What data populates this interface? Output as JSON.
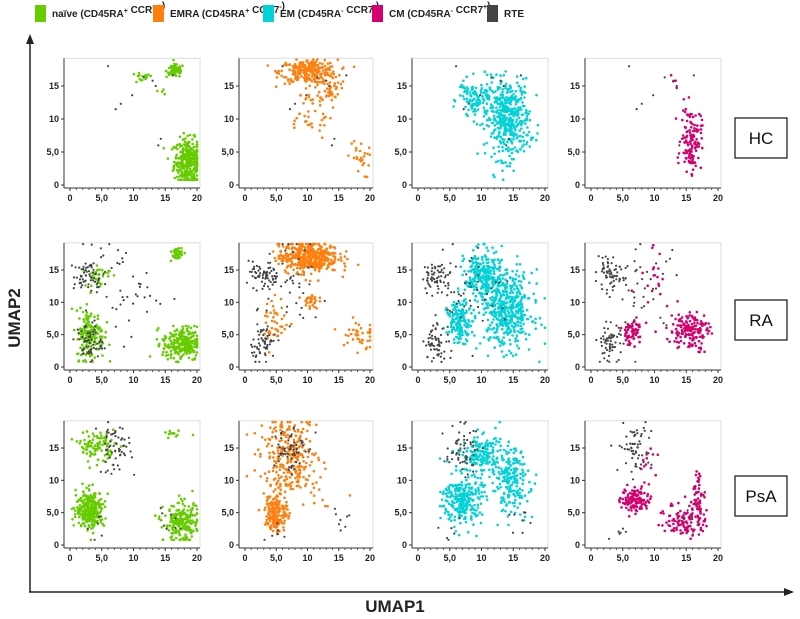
{
  "chart_data": {
    "type": "scatter",
    "title": "",
    "xlabel": "UMAP1",
    "ylabel": "UMAP2",
    "xlim": [
      0,
      20
    ],
    "ylim": [
      0,
      19
    ],
    "xticks": [
      "0",
      "5,0",
      "10",
      "15",
      "20"
    ],
    "xtick_values": [
      0,
      5,
      10,
      15,
      20
    ],
    "yticks": [
      "0",
      "5,0",
      "10",
      "15"
    ],
    "ytick_values": [
      0,
      5,
      10,
      15
    ],
    "legend_position": "top",
    "legend": [
      {
        "key": "naive",
        "pre": "naïve (CD45RA",
        "s1": "+",
        "mid": " CCR7",
        "s2": "+",
        "post": ")",
        "color": "#66cc00"
      },
      {
        "key": "emra",
        "pre": "EMRA (CD45RA",
        "s1": "+",
        "mid": " CCR7",
        "s2": "-",
        "post": ")",
        "color": "#ff7f0e"
      },
      {
        "key": "em",
        "pre": "EM (CD45RA",
        "s1": "-",
        "mid": " CCR7",
        "s2": "-",
        "post": ")",
        "color": "#00d2d6"
      },
      {
        "key": "cm",
        "pre": "CM (CD45RA",
        "s1": "-",
        "mid": " CCR7",
        "s2": "+",
        "post": ")",
        "color": "#d4006e"
      },
      {
        "key": "rte",
        "pre": "RTE",
        "s1": "",
        "mid": "",
        "s2": "",
        "post": "",
        "color": "#444444"
      }
    ],
    "groups": [
      "HC",
      "RA",
      "PsA"
    ],
    "populations": [
      "naive",
      "emra",
      "em",
      "cm"
    ],
    "cluster_note": "clusters as [center_x, center_y, sd_x, sd_y, n_points]",
    "clusters": {
      "HC": {
        "rte": [
          [
            6,
            18,
            0.1,
            0.1,
            1
          ],
          [
            7.2,
            11.5,
            0.1,
            0.1,
            1
          ],
          [
            8,
            12.3,
            0.1,
            0.1,
            1
          ],
          [
            9.8,
            13.6,
            0.1,
            0.1,
            1
          ],
          [
            13,
            15.8,
            0.1,
            0.1,
            1
          ],
          [
            13.5,
            15,
            0.1,
            0.1,
            1
          ],
          [
            14.3,
            7,
            0.1,
            0.1,
            1
          ],
          [
            13.9,
            6,
            0.1,
            0.1,
            1
          ],
          [
            16.2,
            16.6,
            0.1,
            0.1,
            1
          ],
          [
            11.6,
            16.3,
            0.1,
            0.1,
            1
          ]
        ],
        "naive": [
          [
            18.6,
            3.6,
            1.1,
            1.7,
            320
          ],
          [
            16.6,
            17.3,
            0.7,
            0.5,
            70
          ],
          [
            11.3,
            16.2,
            0.9,
            0.4,
            16
          ],
          [
            14.5,
            14,
            0.5,
            1,
            4
          ]
        ],
        "emra": [
          [
            10.2,
            17.2,
            2.3,
            0.9,
            260
          ],
          [
            13.6,
            14.6,
            0.8,
            0.9,
            45
          ],
          [
            10,
            11,
            2,
            2,
            40
          ],
          [
            18.2,
            4,
            0.9,
            1.5,
            25
          ]
        ],
        "em": [
          [
            14.2,
            10,
            1.7,
            3,
            420
          ],
          [
            9.3,
            12.8,
            1.4,
            1.5,
            110
          ],
          [
            7,
            14.5,
            0.5,
            0.5,
            10
          ]
        ],
        "cm": [
          [
            15.8,
            7,
            0.8,
            2.4,
            130
          ],
          [
            12.5,
            16,
            0.6,
            0.6,
            4
          ]
        ]
      },
      "RA": {
        "rte": [
          [
            3,
            14,
            1.2,
            1.1,
            60
          ],
          [
            3,
            3.8,
            1,
            1.5,
            60
          ],
          [
            8,
            12,
            3,
            3.5,
            45
          ]
        ],
        "naive": [
          [
            17.6,
            3.6,
            1.5,
            1.3,
            260
          ],
          [
            3.2,
            5,
            1.1,
            1.9,
            160
          ],
          [
            16.8,
            17.6,
            0.6,
            0.5,
            40
          ],
          [
            4.3,
            14.2,
            1,
            0.9,
            30
          ]
        ],
        "emra": [
          [
            10.2,
            17,
            2.4,
            1.2,
            420
          ],
          [
            10.5,
            10.2,
            0.6,
            0.6,
            30
          ],
          [
            18,
            5,
            1.5,
            1.5,
            40
          ],
          [
            5,
            7,
            1,
            2,
            40
          ]
        ],
        "em": [
          [
            14,
            8.8,
            2,
            3,
            460
          ],
          [
            10.2,
            14,
            1.4,
            2,
            260
          ],
          [
            6.6,
            7,
            1,
            1.5,
            150
          ]
        ],
        "cm": [
          [
            15.5,
            5.6,
            1.5,
            1.5,
            160
          ],
          [
            6.5,
            5.5,
            0.9,
            1,
            60
          ],
          [
            9,
            12.5,
            1.5,
            3,
            20
          ]
        ]
      },
      "PsA": {
        "rte": [
          [
            7,
            15,
            1.3,
            2,
            60
          ],
          [
            4.5,
            2,
            1,
            1,
            6
          ],
          [
            15.5,
            4,
            1,
            1,
            8
          ]
        ],
        "naive": [
          [
            3.2,
            5.5,
            1.1,
            1.4,
            300
          ],
          [
            4.2,
            15.3,
            1.4,
            1.2,
            100
          ],
          [
            17.6,
            3.4,
            1.4,
            1.5,
            210
          ],
          [
            16.5,
            17,
            0.8,
            0.4,
            12
          ]
        ],
        "emra": [
          [
            5,
            5,
            0.9,
            1.5,
            160
          ],
          [
            7,
            13.5,
            2.3,
            3,
            260
          ],
          [
            10,
            10,
            2.5,
            2,
            25
          ]
        ],
        "em": [
          [
            7,
            7,
            1.5,
            2,
            260
          ],
          [
            10,
            14,
            1.5,
            1.5,
            160
          ],
          [
            14.5,
            10,
            1.5,
            2.5,
            210
          ]
        ],
        "cm": [
          [
            7,
            7,
            1.1,
            1,
            120
          ],
          [
            15,
            4,
            1.6,
            1.4,
            120
          ],
          [
            17,
            8,
            0.5,
            1.5,
            40
          ],
          [
            9,
            13,
            1.2,
            2,
            12
          ]
        ]
      }
    }
  }
}
